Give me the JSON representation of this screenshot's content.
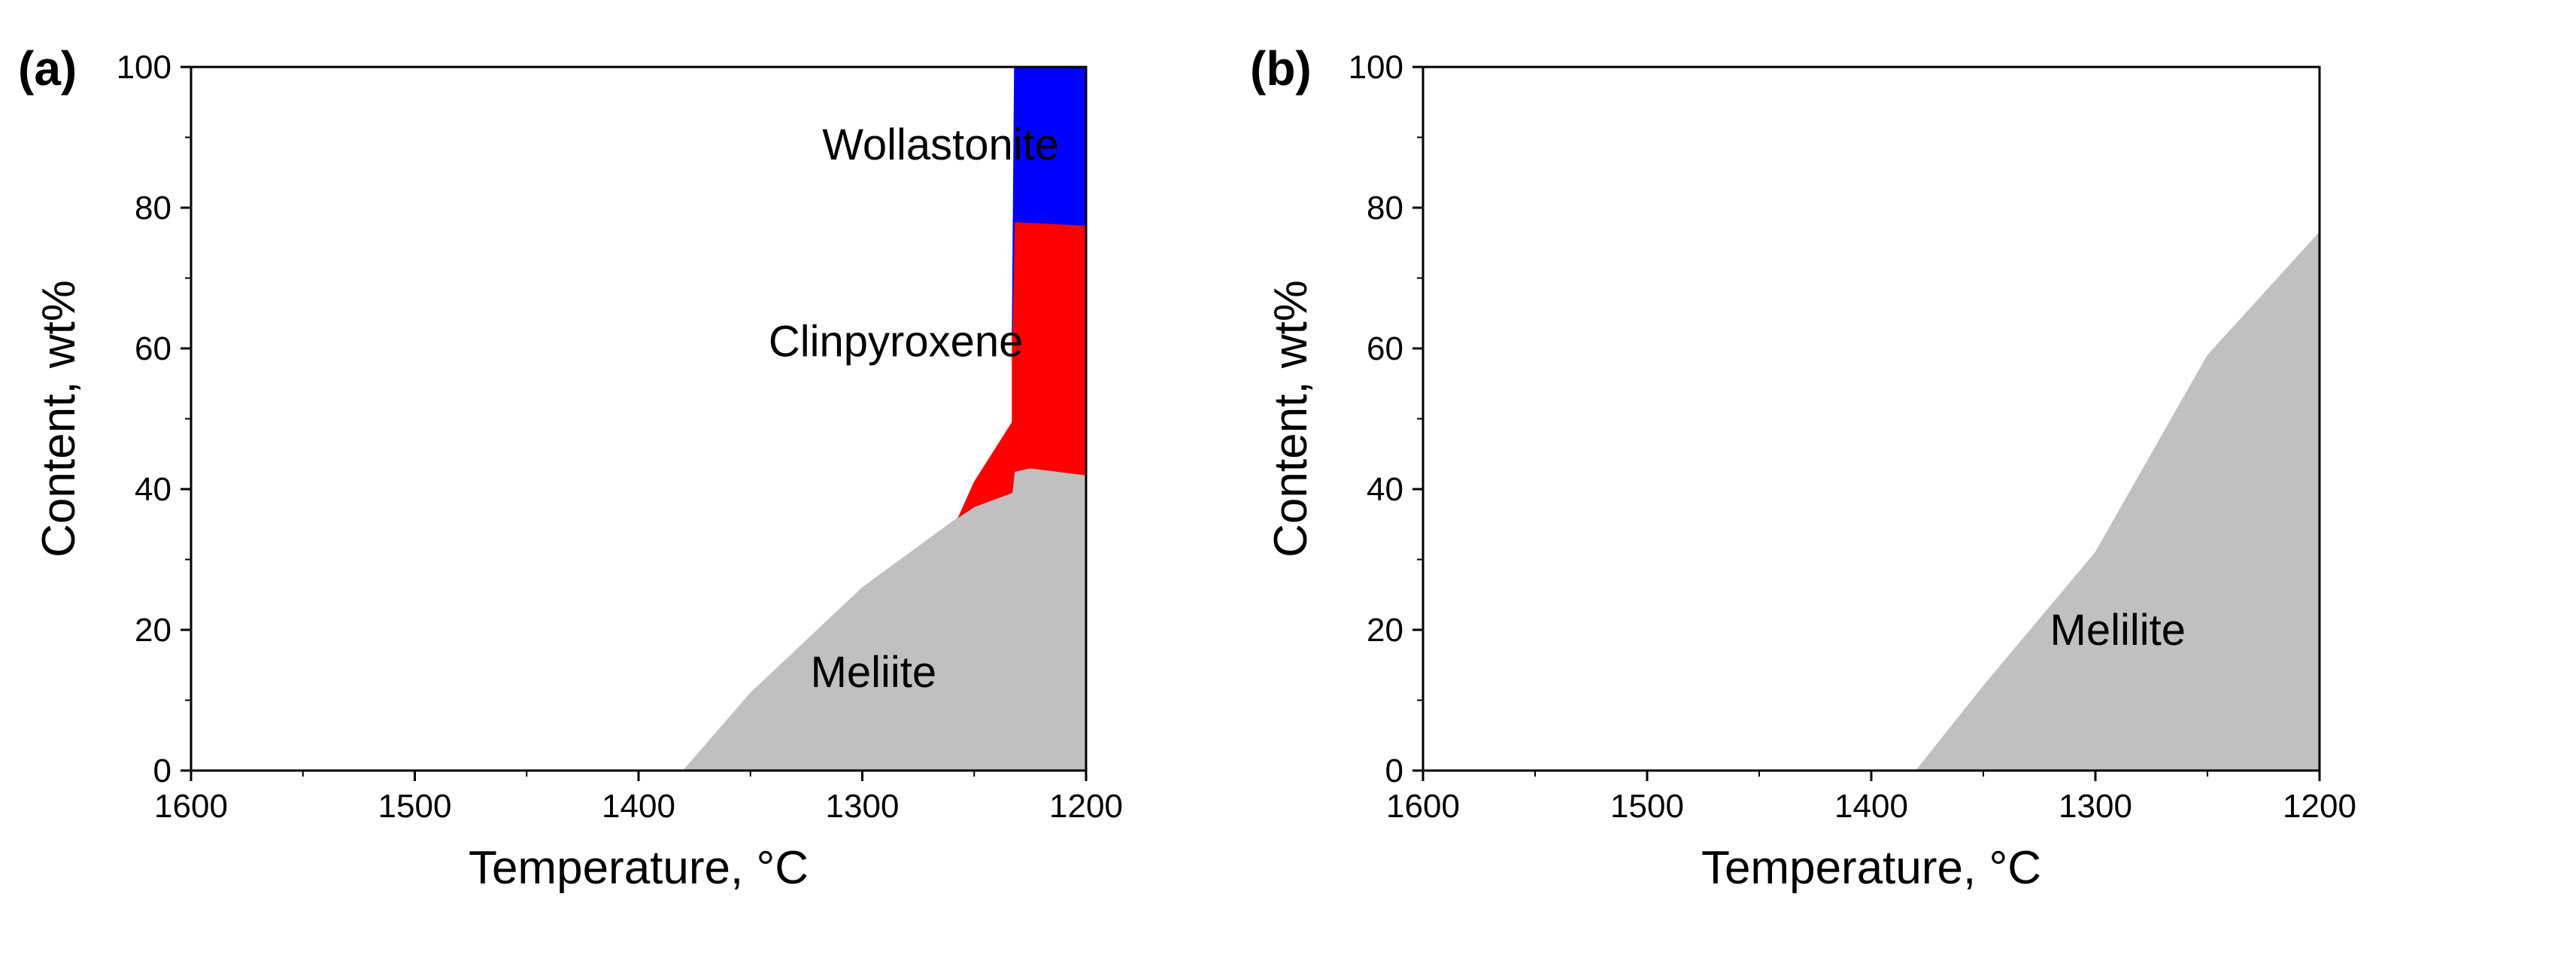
{
  "chart_data": [
    {
      "type": "area",
      "panel_label": "(a)",
      "xlabel": "Temperature, °C",
      "ylabel": "Content, wt%",
      "xlim": [
        1600,
        1200
      ],
      "ylim": [
        0,
        100
      ],
      "xticks": [
        "1600",
        "1500",
        "1400",
        "1300",
        "1200"
      ],
      "yticks": [
        "0",
        "20",
        "40",
        "60",
        "80",
        "100"
      ],
      "series": [
        {
          "name": "Meliite",
          "color": "#c0c0c0",
          "lower": [
            [
              1380,
              0
            ],
            [
              1200,
              0
            ]
          ],
          "upper": [
            [
              1380,
              0
            ],
            [
              1350,
              11
            ],
            [
              1300,
              26
            ],
            [
              1257,
              36
            ],
            [
              1250,
              37.5
            ],
            [
              1233,
              39.5
            ],
            [
              1232,
              42.5
            ],
            [
              1225,
              43
            ],
            [
              1200,
              42
            ]
          ]
        },
        {
          "name": "Clinpyroxene",
          "color": "#ff0000",
          "lower": [
            [
              1257,
              36
            ],
            [
              1250,
              37.5
            ],
            [
              1233,
              39.5
            ],
            [
              1232,
              42.5
            ],
            [
              1225,
              43
            ],
            [
              1200,
              42
            ]
          ],
          "upper": [
            [
              1257,
              36
            ],
            [
              1250,
              41
            ],
            [
              1233,
              49.5
            ],
            [
              1233,
              62
            ],
            [
              1232,
              78
            ],
            [
              1200,
              77.5
            ]
          ]
        },
        {
          "name": "Wollastonite",
          "color": "#0000ff",
          "lower": [
            [
              1233,
              62
            ],
            [
              1232,
              78
            ],
            [
              1200,
              77.5
            ]
          ],
          "upper": [
            [
              1233,
              62
            ],
            [
              1232,
              100
            ],
            [
              1200,
              100
            ]
          ]
        }
      ],
      "annotations": [
        {
          "text": "Wollastonite",
          "x": 1265,
          "y": 89
        },
        {
          "text": "Clinpyroxene",
          "x": 1285,
          "y": 61
        },
        {
          "text": "Meliite",
          "x": 1295,
          "y": 14
        }
      ]
    },
    {
      "type": "area",
      "panel_label": "(b)",
      "xlabel": "Temperature, °C",
      "ylabel": "Content, wt%",
      "xlim": [
        1600,
        1200
      ],
      "ylim": [
        0,
        100
      ],
      "xticks": [
        "1600",
        "1500",
        "1400",
        "1300",
        "1200"
      ],
      "yticks": [
        "0",
        "20",
        "40",
        "60",
        "80",
        "100"
      ],
      "series": [
        {
          "name": "Melilite",
          "color": "#c0c0c0",
          "lower": [
            [
              1380,
              0
            ],
            [
              1200,
              0
            ]
          ],
          "upper": [
            [
              1380,
              0
            ],
            [
              1350,
              12
            ],
            [
              1300,
              31
            ],
            [
              1250,
              59
            ],
            [
              1200,
              76.5
            ]
          ]
        }
      ],
      "annotations": [
        {
          "text": "Melilite",
          "x": 1290,
          "y": 20
        }
      ]
    }
  ]
}
